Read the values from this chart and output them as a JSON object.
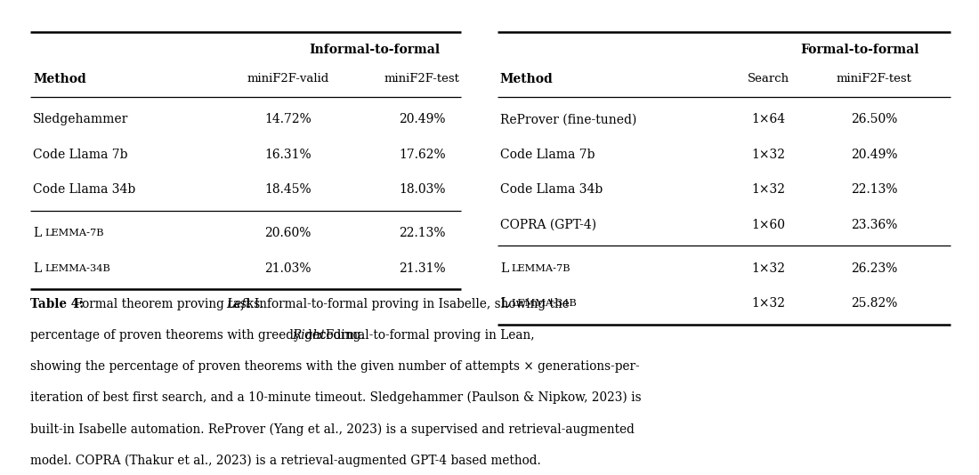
{
  "bg_color": "#ffffff",
  "left_table": {
    "title": "Informal-to-formal",
    "col_method": "Method",
    "col2": "miniF2F-valid",
    "col3": "miniF2F-test",
    "group1": [
      [
        "Sledgehammer",
        "14.72%",
        "20.49%"
      ],
      [
        "Code Llama 7b",
        "16.31%",
        "17.62%"
      ],
      [
        "Code Llama 34b",
        "18.45%",
        "18.03%"
      ]
    ],
    "group2": [
      [
        "Llemma-7b",
        "20.60%",
        "22.13%"
      ],
      [
        "Llemma-34b",
        "21.03%",
        "21.31%"
      ]
    ]
  },
  "right_table": {
    "title": "Formal-to-formal",
    "col_method": "Method",
    "col2": "Search",
    "col3": "miniF2F-test",
    "group1": [
      [
        "ReProver (fine-tuned)",
        "1×64",
        "26.50%"
      ],
      [
        "Code Llama 7b",
        "1×32",
        "20.49%"
      ],
      [
        "Code Llama 34b",
        "1×32",
        "22.13%"
      ],
      [
        "COPRA (GPT-4)",
        "1×60",
        "23.36%"
      ]
    ],
    "group2": [
      [
        "Llemma-7b",
        "1×32",
        "26.23%"
      ],
      [
        "Llemma-34b",
        "1×32",
        "25.82%"
      ]
    ]
  },
  "caption_prefix": "Table 4:",
  "caption_rest": " Formal theorem proving tasks. ",
  "caption_left_label": "Left",
  "caption_after_left": ": Informal-to-formal proving in Isabelle, showing the percentage of proven theorems with greedy decoding. ",
  "caption_right_label": "Right",
  "caption_after_right": ": Formal-to-formal proving in Lean, showing the percentage of proven theorems with the given number of attempts × generations-per-iteration of best first search, and a 10-minute timeout. Sledgehammer (Paulson & Nipkow, 2023) is built-in Isabelle automation. ReProver (Yang et al., 2023) is a supervised and retrieval-augmented model. COPRA (Thakur et al., 2023) is a retrieval-augmented GPT-4 based method.",
  "lw_thick": 1.8,
  "lw_thin": 0.9,
  "table_fontsize": 10.0,
  "header_fontsize": 10.0,
  "caption_fontsize": 9.8
}
